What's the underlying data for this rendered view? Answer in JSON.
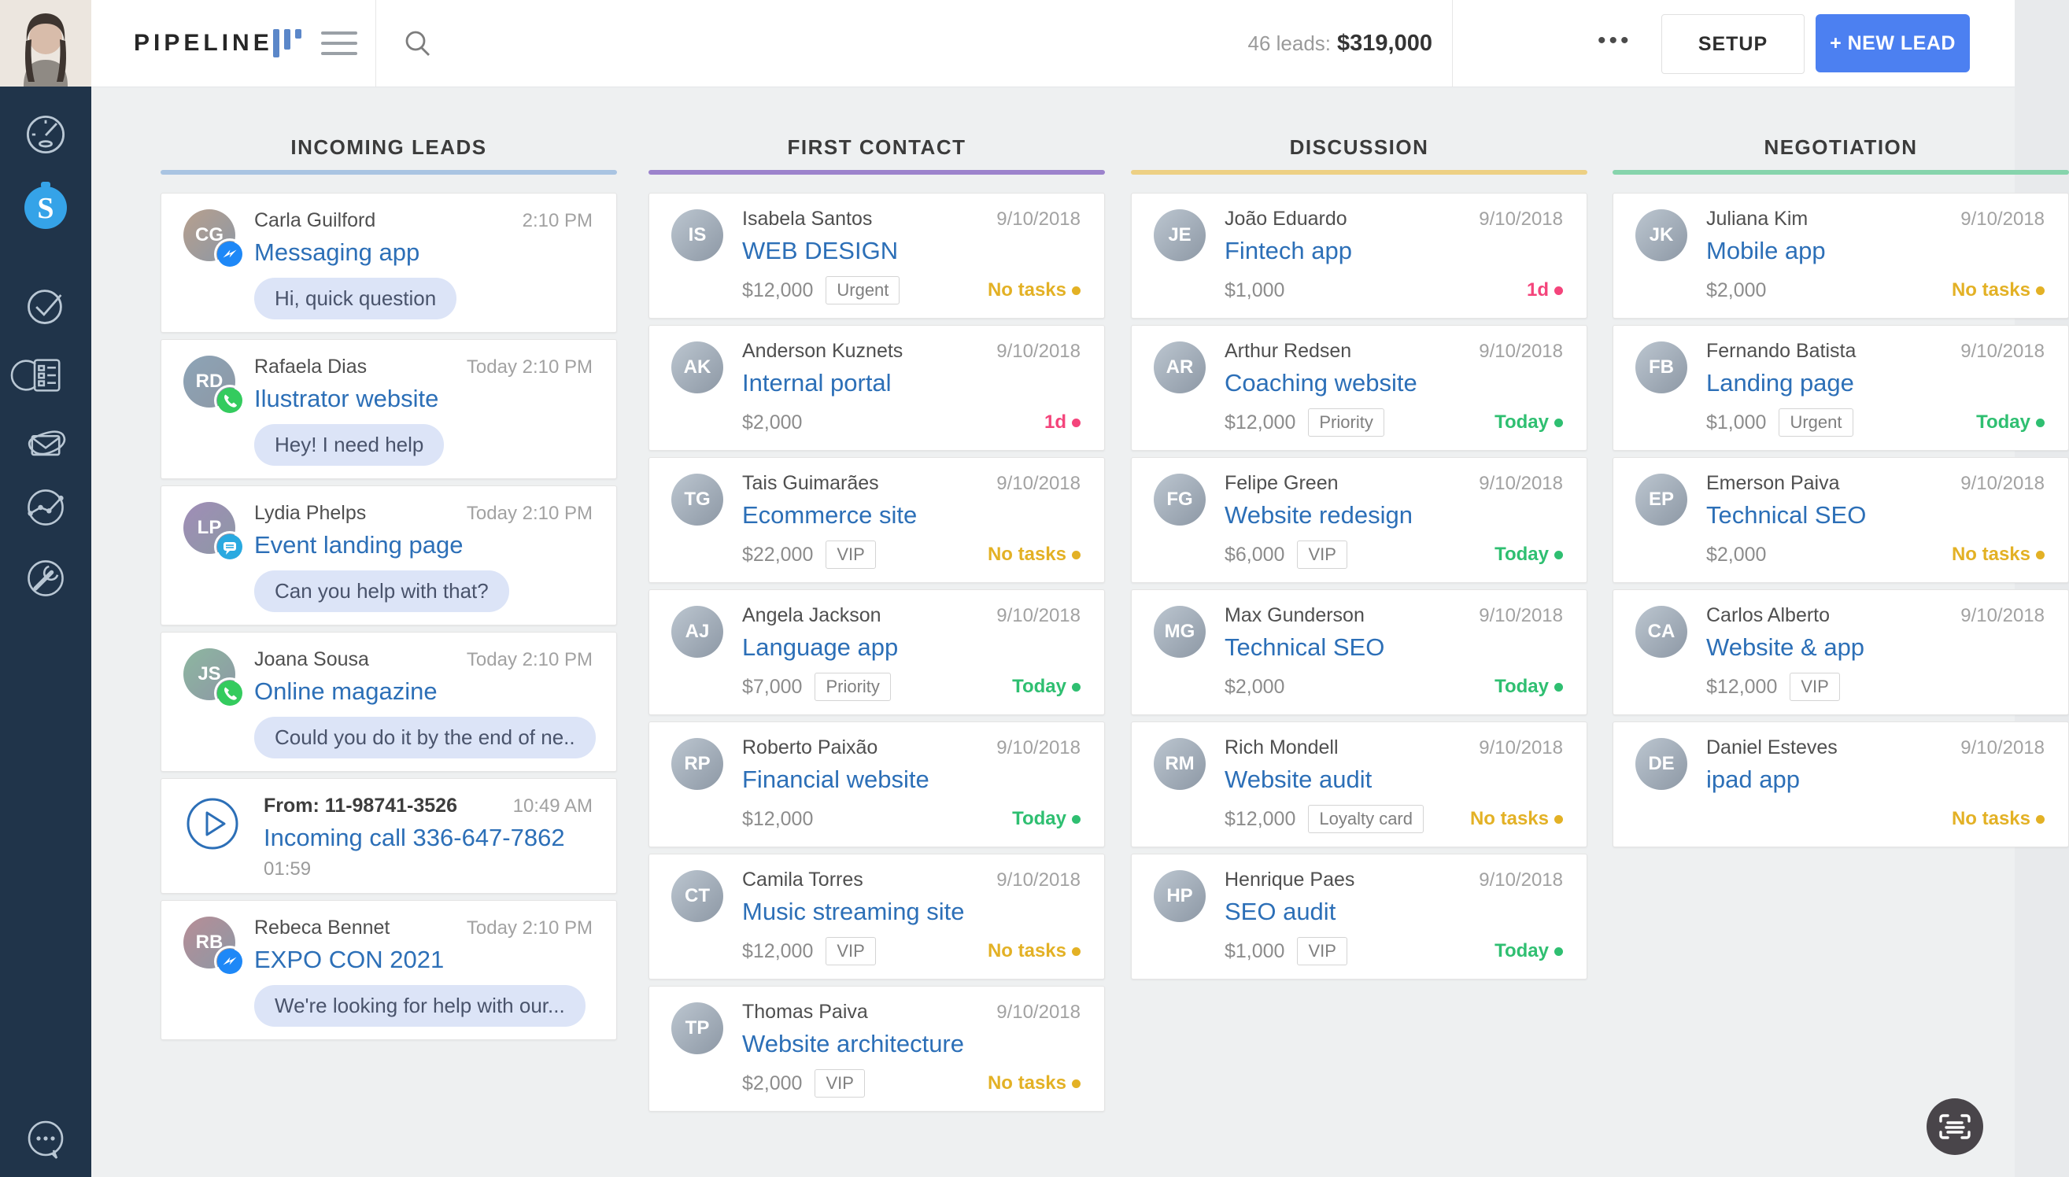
{
  "topbar": {
    "title": "PIPELINE",
    "view_icons": [
      "kanban-view-icon",
      "list-view-icon"
    ],
    "search_icon": "search-icon",
    "leads_count_label": "46 leads:",
    "leads_total": "$319,000",
    "more_label": "•••",
    "setup_label": "SETUP",
    "new_lead_label": "+ NEW LEAD"
  },
  "sidebar": {
    "user_avatar": "user-photo",
    "icons": [
      "dashboard-icon",
      "pipeline-icon",
      "tasks-icon",
      "lists-icon",
      "mail-icon",
      "stats-icon",
      "settings-icon"
    ],
    "active_icon": "pipeline-icon",
    "bottom_icon": "support-chat-icon"
  },
  "colors": {
    "accent_blue": "#4c80f1",
    "link_blue": "#2c6fb7",
    "sidebar_bg": "#20344a",
    "board_bg": "#eef0f1",
    "bubble_bg": "#dce4f7",
    "badge_messenger": "#1e88f7",
    "badge_whatsapp": "#34cb5e",
    "badge_chat": "#29a9e0"
  },
  "status_colors": {
    "yellow": "#e3b125",
    "pink": "#f4447b",
    "green": "#2fbf71"
  },
  "columns": [
    {
      "id": "incoming-leads",
      "title": "INCOMING LEADS",
      "accent": "#a9c4e2",
      "cards": [
        {
          "type": "chat",
          "name": "Carla Guilford",
          "time": "2:10 PM",
          "title": "Messaging app",
          "message": "Hi, quick question",
          "badge": "messenger"
        },
        {
          "type": "chat",
          "name": "Rafaela Dias",
          "time": "Today 2:10 PM",
          "title": "Ilustrator website",
          "message": "Hey! I need help",
          "badge": "whatsapp"
        },
        {
          "type": "chat",
          "name": "Lydia Phelps",
          "time": "Today 2:10 PM",
          "title": "Event landing page",
          "message": "Can you help with that?",
          "badge": "chat"
        },
        {
          "type": "chat",
          "name": "Joana Sousa",
          "time": "Today 2:10 PM",
          "title": "Online magazine",
          "message": "Could you do it by the end of ne..",
          "badge": "whatsapp"
        },
        {
          "type": "call",
          "from": "From: 11-98741-3526",
          "time": "10:49 AM",
          "title": "Incoming call 336-647-7862",
          "duration": "01:59"
        },
        {
          "type": "chat",
          "name": "Rebeca Bennet",
          "time": "Today 2:10 PM",
          "title": "EXPO CON 2021",
          "message": "We're looking for help with our...",
          "badge": "messenger"
        }
      ]
    },
    {
      "id": "first-contact",
      "title": "FIRST CONTACT",
      "accent": "#9c83cc",
      "cards": [
        {
          "type": "deal",
          "name": "Isabela Santos",
          "date": "9/10/2018",
          "title": "WEB DESIGN",
          "price": "$12,000",
          "tag": "Urgent",
          "status": "No tasks",
          "status_color": "yellow"
        },
        {
          "type": "deal",
          "name": "Anderson Kuznets",
          "date": "9/10/2018",
          "title": "Internal portal",
          "price": "$2,000",
          "tag": "",
          "status": "1d",
          "status_color": "pink"
        },
        {
          "type": "deal",
          "name": "Tais Guimarães",
          "date": "9/10/2018",
          "title": "Ecommerce site",
          "price": "$22,000",
          "tag": "VIP",
          "status": "No tasks",
          "status_color": "yellow"
        },
        {
          "type": "deal",
          "name": "Angela Jackson",
          "date": "9/10/2018",
          "title": "Language app",
          "price": "$7,000",
          "tag": "Priority",
          "status": "Today",
          "status_color": "green"
        },
        {
          "type": "deal",
          "name": "Roberto Paixão",
          "date": "9/10/2018",
          "title": "Financial website",
          "price": "$12,000",
          "tag": "",
          "status": "Today",
          "status_color": "green"
        },
        {
          "type": "deal",
          "name": "Camila Torres",
          "date": "9/10/2018",
          "title": "Music streaming site",
          "price": "$12,000",
          "tag": "VIP",
          "status": "No tasks",
          "status_color": "yellow"
        },
        {
          "type": "deal",
          "name": "Thomas Paiva",
          "date": "9/10/2018",
          "title": "Website architecture",
          "price": "$2,000",
          "tag": "VIP",
          "status": "No tasks",
          "status_color": "yellow"
        }
      ]
    },
    {
      "id": "discussion",
      "title": "DISCUSSION",
      "accent": "#edd084",
      "cards": [
        {
          "type": "deal",
          "name": "João Eduardo",
          "date": "9/10/2018",
          "title": "Fintech app",
          "price": "$1,000",
          "tag": "",
          "status": "1d",
          "status_color": "pink"
        },
        {
          "type": "deal",
          "name": "Arthur Redsen",
          "date": "9/10/2018",
          "title": "Coaching website",
          "price": "$12,000",
          "tag": "Priority",
          "status": "Today",
          "status_color": "green"
        },
        {
          "type": "deal",
          "name": "Felipe Green",
          "date": "9/10/2018",
          "title": "Website redesign",
          "price": "$6,000",
          "tag": "VIP",
          "status": "Today",
          "status_color": "green"
        },
        {
          "type": "deal",
          "name": "Max Gunderson",
          "date": "9/10/2018",
          "title": "Technical SEO",
          "price": "$2,000",
          "tag": "",
          "status": "Today",
          "status_color": "green"
        },
        {
          "type": "deal",
          "name": "Rich Mondell",
          "date": "9/10/2018",
          "title": "Website audit",
          "price": "$12,000",
          "tag": "Loyalty card",
          "status": "No tasks",
          "status_color": "yellow"
        },
        {
          "type": "deal",
          "name": "Henrique Paes",
          "date": "9/10/2018",
          "title": "SEO audit",
          "price": "$1,000",
          "tag": "VIP",
          "status": "Today",
          "status_color": "green"
        }
      ]
    },
    {
      "id": "negotiation",
      "title": "NEGOTIATION",
      "accent": "#86d4ac",
      "cards": [
        {
          "type": "deal",
          "name": "Juliana Kim",
          "date": "9/10/2018",
          "title": "Mobile app",
          "price": "$2,000",
          "tag": "",
          "status": "No tasks",
          "status_color": "yellow"
        },
        {
          "type": "deal",
          "name": "Fernando Batista",
          "date": "9/10/2018",
          "title": "Landing page",
          "price": "$1,000",
          "tag": "Urgent",
          "status": "Today",
          "status_color": "green"
        },
        {
          "type": "deal",
          "name": "Emerson Paiva",
          "date": "9/10/2018",
          "title": "Technical SEO",
          "price": "$2,000",
          "tag": "",
          "status": "No tasks",
          "status_color": "yellow"
        },
        {
          "type": "deal",
          "name": "Carlos Alberto",
          "date": "9/10/2018",
          "title": "Website & app",
          "price": "$12,000",
          "tag": "VIP",
          "status": "",
          "status_color": ""
        },
        {
          "type": "deal",
          "name": "Daniel Esteves",
          "date": "9/10/2018",
          "title": "ipad app",
          "price": "",
          "tag": "",
          "status": "No tasks",
          "status_color": "yellow"
        }
      ]
    }
  ]
}
